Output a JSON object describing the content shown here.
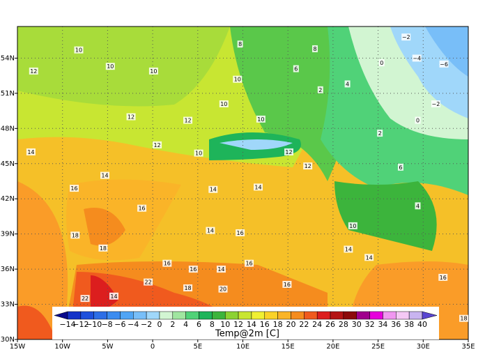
{
  "map": {
    "xlim": [
      -15,
      35
    ],
    "ylim": [
      30,
      56.7
    ],
    "xticks": [
      {
        "value": -15,
        "label": "15W"
      },
      {
        "value": -10,
        "label": "10W"
      },
      {
        "value": -5,
        "label": "5W"
      },
      0,
      {
        "value": 5,
        "label": "5E"
      },
      {
        "value": 10,
        "label": "10E"
      },
      {
        "value": 15,
        "label": "15E"
      },
      {
        "value": 20,
        "label": "20E"
      },
      {
        "value": 25,
        "label": "25E"
      },
      {
        "value": 30,
        "label": "30E"
      },
      {
        "value": 35,
        "label": "35E"
      }
    ],
    "yticks": [
      {
        "value": 30,
        "label": "30N"
      },
      {
        "value": 33,
        "label": "33N"
      },
      {
        "value": 36,
        "label": "36N"
      },
      {
        "value": 39,
        "label": "39N"
      },
      {
        "value": 42,
        "label": "42N"
      },
      {
        "value": 45,
        "label": "45N"
      },
      {
        "value": 48,
        "label": "48N"
      },
      {
        "value": 51,
        "label": "51N"
      },
      {
        "value": 54,
        "label": "54N"
      }
    ],
    "grid": true,
    "contour_labels": [
      {
        "lon": -13.2,
        "lat": 52.9,
        "value": 12
      },
      {
        "lon": -13.5,
        "lat": 46.0,
        "value": 14
      },
      {
        "lon": -8.2,
        "lat": 54.7,
        "value": 10
      },
      {
        "lon": -4.7,
        "lat": 53.3,
        "value": 10
      },
      {
        "lon": 0.1,
        "lat": 52.9,
        "value": 10
      },
      {
        "lon": 9.4,
        "lat": 52.2,
        "value": 10
      },
      {
        "lon": 7.9,
        "lat": 50.1,
        "value": 10
      },
      {
        "lon": 12.0,
        "lat": 48.8,
        "value": 10
      },
      {
        "lon": 3.9,
        "lat": 48.7,
        "value": 12
      },
      {
        "lon": -2.4,
        "lat": 49.0,
        "value": 12
      },
      {
        "lon": 0.5,
        "lat": 46.6,
        "value": 12
      },
      {
        "lon": 5.1,
        "lat": 45.9,
        "value": 10
      },
      {
        "lon": 6.7,
        "lat": 42.8,
        "value": 14
      },
      {
        "lon": 11.7,
        "lat": 43.0,
        "value": 14
      },
      {
        "lon": 17.2,
        "lat": 44.8,
        "value": 12
      },
      {
        "lon": 15.1,
        "lat": 46.0,
        "value": 12
      },
      {
        "lon": -5.3,
        "lat": 44.0,
        "value": 14
      },
      {
        "lon": -8.7,
        "lat": 42.9,
        "value": 16
      },
      {
        "lon": -1.2,
        "lat": 41.2,
        "value": 16
      },
      {
        "lon": 6.4,
        "lat": 39.3,
        "value": 14
      },
      {
        "lon": 9.7,
        "lat": 39.1,
        "value": 16
      },
      {
        "lon": -8.6,
        "lat": 38.9,
        "value": 18
      },
      {
        "lon": -5.5,
        "lat": 37.8,
        "value": 18
      },
      {
        "lon": 1.6,
        "lat": 36.5,
        "value": 16
      },
      {
        "lon": 4.5,
        "lat": 36.0,
        "value": 16
      },
      {
        "lon": 7.6,
        "lat": 36.0,
        "value": 14
      },
      {
        "lon": 10.7,
        "lat": 36.5,
        "value": 16
      },
      {
        "lon": 3.9,
        "lat": 34.4,
        "value": 18
      },
      {
        "lon": -0.5,
        "lat": 34.9,
        "value": 22
      },
      {
        "lon": -7.5,
        "lat": 33.5,
        "value": 22
      },
      {
        "lon": -4.3,
        "lat": 33.7,
        "value": 14
      },
      {
        "lon": 7.8,
        "lat": 34.3,
        "value": 20
      },
      {
        "lon": 14.9,
        "lat": 34.7,
        "value": 16
      },
      {
        "lon": 21.7,
        "lat": 37.7,
        "value": 14
      },
      {
        "lon": 24.0,
        "lat": 37.0,
        "value": 14
      },
      {
        "lon": 32.2,
        "lat": 35.3,
        "value": 16
      },
      {
        "lon": 34.5,
        "lat": 31.8,
        "value": 18
      },
      {
        "lon": 22.2,
        "lat": 39.7,
        "value": 10
      },
      {
        "lon": 25.2,
        "lat": 47.6,
        "value": 2
      },
      {
        "lon": 29.4,
        "lat": 48.7,
        "value": 0
      },
      {
        "lon": 31.4,
        "lat": 50.1,
        "value": -2
      },
      {
        "lon": 29.3,
        "lat": 54.0,
        "value": -4
      },
      {
        "lon": 32.3,
        "lat": 53.5,
        "value": -6
      },
      {
        "lon": 28.1,
        "lat": 55.8,
        "value": -2
      },
      {
        "lon": 25.4,
        "lat": 53.6,
        "value": 0
      },
      {
        "lon": 21.6,
        "lat": 51.8,
        "value": 4
      },
      {
        "lon": 18.6,
        "lat": 51.3,
        "value": 2
      },
      {
        "lon": 15.9,
        "lat": 53.1,
        "value": 6
      },
      {
        "lon": 18.0,
        "lat": 54.8,
        "value": 8
      },
      {
        "lon": 9.7,
        "lat": 55.2,
        "value": 8
      },
      {
        "lon": 27.5,
        "lat": 44.7,
        "value": 6
      },
      {
        "lon": 29.4,
        "lat": 41.4,
        "value": 4
      }
    ],
    "colorbar": {
      "label": "Temp@2m [C]",
      "ticks": [
        -14,
        -12,
        -10,
        -8,
        -6,
        -4,
        -2,
        0,
        2,
        4,
        6,
        8,
        10,
        12,
        14,
        16,
        18,
        20,
        22,
        24,
        26,
        28,
        30,
        32,
        34,
        36,
        38,
        40
      ],
      "colors": [
        "#0a0a8c",
        "#1432c8",
        "#1e50dc",
        "#2d6ee6",
        "#3c8cf0",
        "#50a5f5",
        "#78bef8",
        "#a0d7fa",
        "#d2f5d2",
        "#a0e6a0",
        "#50d278",
        "#1eb45a",
        "#3cb43c",
        "#8cd232",
        "#c8e632",
        "#f0f032",
        "#fad228",
        "#fab428",
        "#f58c1e",
        "#f05a1e",
        "#dc1e1e",
        "#b41414",
        "#8c0a0a",
        "#a0008c",
        "#e600dc",
        "#f096f0",
        "#f5c8f5",
        "#c8b4f0",
        "#9682f0",
        "#5a46d2"
      ]
    }
  }
}
